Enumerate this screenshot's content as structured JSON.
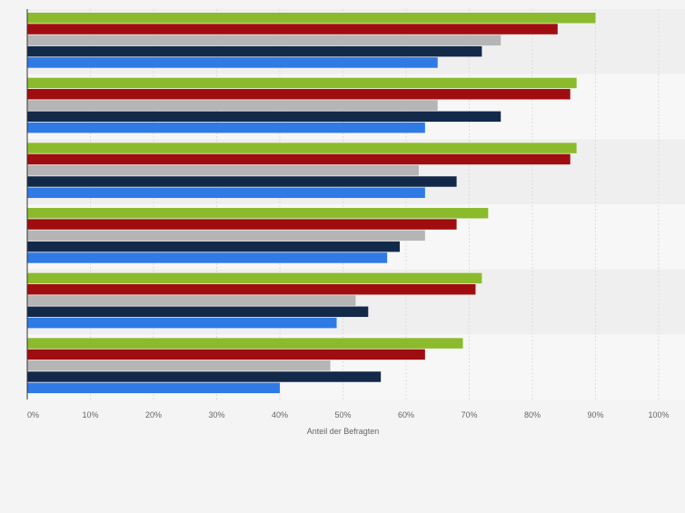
{
  "chart_data": {
    "type": "bar",
    "orientation": "horizontal",
    "title": "",
    "xlabel": "Anteil der Befragten",
    "ylabel": "",
    "xlim": [
      0,
      100
    ],
    "x_ticks": [
      "0%",
      "10%",
      "20%",
      "30%",
      "40%",
      "50%",
      "60%",
      "70%",
      "80%",
      "90%",
      "100%"
    ],
    "grid": true,
    "legend": "none",
    "categories": [
      "",
      "",
      "",
      "",
      "",
      ""
    ],
    "series": [
      {
        "color": "#8bbb2c",
        "values": [
          90,
          87,
          87,
          73,
          72,
          69
        ]
      },
      {
        "color": "#a00d10",
        "values": [
          84,
          86,
          86,
          68,
          71,
          63
        ]
      },
      {
        "color": "#b5b5b5",
        "values": [
          75,
          65,
          62,
          63,
          52,
          48
        ]
      },
      {
        "color": "#13294a",
        "values": [
          72,
          75,
          68,
          59,
          54,
          56
        ]
      },
      {
        "color": "#2f7ae5",
        "values": [
          65,
          63,
          63,
          57,
          49,
          40
        ]
      }
    ]
  }
}
